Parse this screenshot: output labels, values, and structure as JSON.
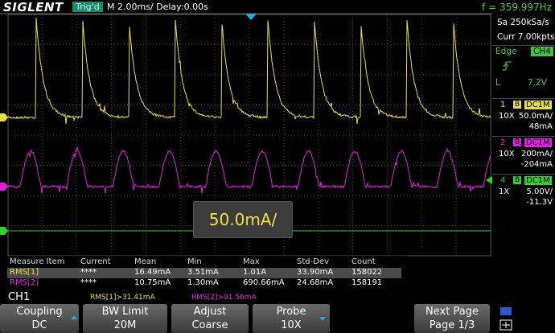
{
  "header": {
    "brand": "SIGLENT",
    "status": "Trig'd",
    "timebase": "M 2.00ms/ Delay:0.00s",
    "frequency": "f = 359.997Hz"
  },
  "acquisition": {
    "sample_rate": "Sa 250kSa/s",
    "memory": "Curr 7.00kpts"
  },
  "trigger": {
    "type": "Edge",
    "source": "CH4",
    "level_label": "L",
    "level": "7.2V"
  },
  "channels": [
    {
      "number": "1",
      "bandwidth": "B",
      "coupling": "DC1M",
      "probe": "10X",
      "scale": "50.0mA/",
      "offset": "48mA"
    },
    {
      "number": "2",
      "bandwidth": "B",
      "coupling": "DC1M",
      "probe": "10X",
      "scale": "200mA/",
      "offset": "-204mA"
    },
    {
      "number": "4",
      "bandwidth": "B",
      "coupling": "DC1M",
      "probe": "1X",
      "scale": "5.00V/",
      "offset": "-11.3V"
    }
  ],
  "popup": "50.0mA/",
  "measure_table": {
    "headers": [
      "Measure Item",
      "Current",
      "Mean",
      "Min",
      "Max",
      "Std-Dev",
      "Count"
    ],
    "rows": [
      [
        "RMS[1]",
        "****",
        "16.49mA",
        "3.51mA",
        "1.01A",
        "33.90mA",
        "158022"
      ],
      [
        "RMS[2]",
        "****",
        "10.75mA",
        "1.30mA",
        "690.66mA",
        "24.68mA",
        "158191"
      ]
    ]
  },
  "status_bar": {
    "channel": "CH1",
    "thresholds": [
      "RMS[1]>31.41mA",
      "RMS[2]>91.56mA"
    ]
  },
  "softkeys": [
    {
      "label": "Coupling",
      "value": "DC"
    },
    {
      "label": "BW Limit",
      "value": "20M"
    },
    {
      "label": "Adjust",
      "value": "Coarse"
    },
    {
      "label": "Probe",
      "value": "10X"
    },
    {
      "label": "Next Page",
      "value": "Page 1/3"
    }
  ]
}
